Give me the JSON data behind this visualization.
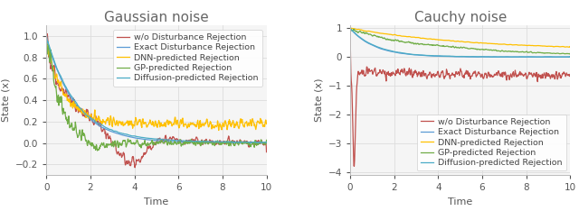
{
  "title_left": "Gaussian noise",
  "title_right": "Cauchy noise",
  "xlabel": "Time",
  "ylabel": "State (x)",
  "legend_labels": [
    "w/o Disturbance Rejection",
    "Exact Disturbance Rejection",
    "DNN-predicted Rejection",
    "GP-predicted Rejection",
    "Diffusion-predicted Rejection"
  ],
  "colors": [
    "#c0504d",
    "#5b9bd5",
    "#ffc000",
    "#70ad47",
    "#4bacc6"
  ],
  "ylim_left": [
    -0.3,
    1.1
  ],
  "ylim_right": [
    -4.1,
    1.1
  ],
  "xlim": [
    0,
    10
  ],
  "t_max": 10,
  "n_points": 600,
  "background_color": "#f5f5f5",
  "grid_color": "#dddddd",
  "title_fontsize": 11,
  "label_fontsize": 8,
  "legend_fontsize": 6.8,
  "tick_fontsize": 7.5,
  "linewidth": 0.9,
  "title_color": "#666666"
}
